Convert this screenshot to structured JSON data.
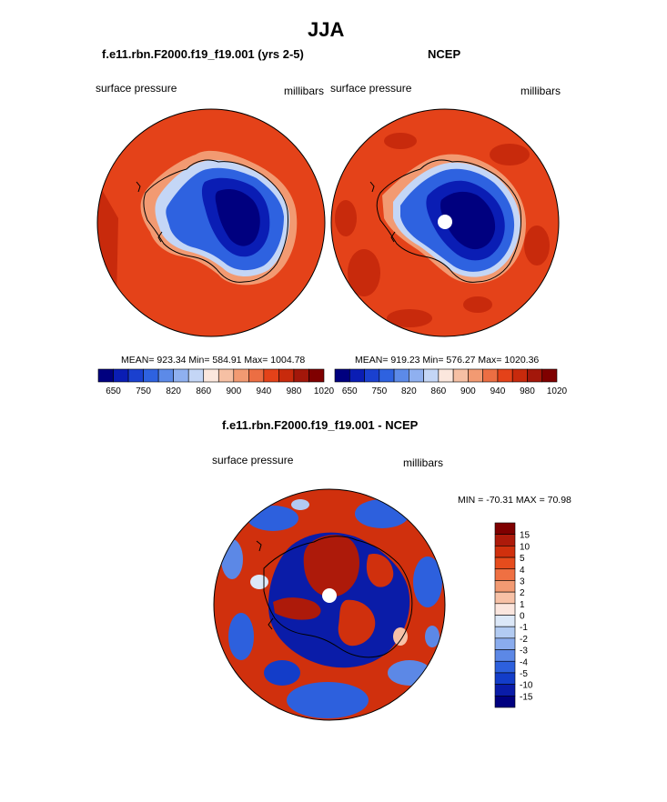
{
  "main_title": "JJA",
  "panels": {
    "model": {
      "title": "f.e11.rbn.F2000.f19_f19.001 (yrs 2-5)",
      "left_label": "surface pressure",
      "right_label": "millibars",
      "stats": "MEAN= 923.34  Min= 584.91  Max= 1004.78"
    },
    "obs": {
      "title": "NCEP",
      "left_label": "surface pressure",
      "right_label": "millibars",
      "stats": "MEAN= 919.23  Min= 576.27  Max= 1020.36"
    },
    "diff": {
      "title": "f.e11.rbn.F2000.f19_f19.001 - NCEP",
      "left_label": "surface pressure",
      "right_label": "millibars",
      "stats": "MIN = -70.31 MAX =  70.98"
    }
  },
  "colorbar_abs": {
    "colors": [
      "#00007f",
      "#0a1db4",
      "#1a40cf",
      "#2e62e0",
      "#5c8ae8",
      "#8fb0f0",
      "#c4d6f6",
      "#fbe7dd",
      "#f6c0a4",
      "#f29a72",
      "#ec6e43",
      "#e44219",
      "#c82a0c",
      "#a3170a",
      "#7f0000"
    ],
    "tick_labels": [
      "650",
      "750",
      "820",
      "860",
      "900",
      "940",
      "980",
      "1020"
    ]
  },
  "colorbar_diff": {
    "colors": [
      "#7f0000",
      "#ad1a0a",
      "#d0300d",
      "#e64c1d",
      "#ef7042",
      "#f29a72",
      "#f7c1a6",
      "#fbe6de",
      "#dce8f8",
      "#b2cbf2",
      "#8aacee",
      "#5c88e6",
      "#2d60dd",
      "#133dc9",
      "#0a1ca8",
      "#00007f"
    ],
    "tick_labels": [
      "15",
      "10",
      "5",
      "4",
      "3",
      "2",
      "1",
      "0",
      "-1",
      "-2",
      "-3",
      "-4",
      "-5",
      "-10",
      "-15"
    ]
  }
}
